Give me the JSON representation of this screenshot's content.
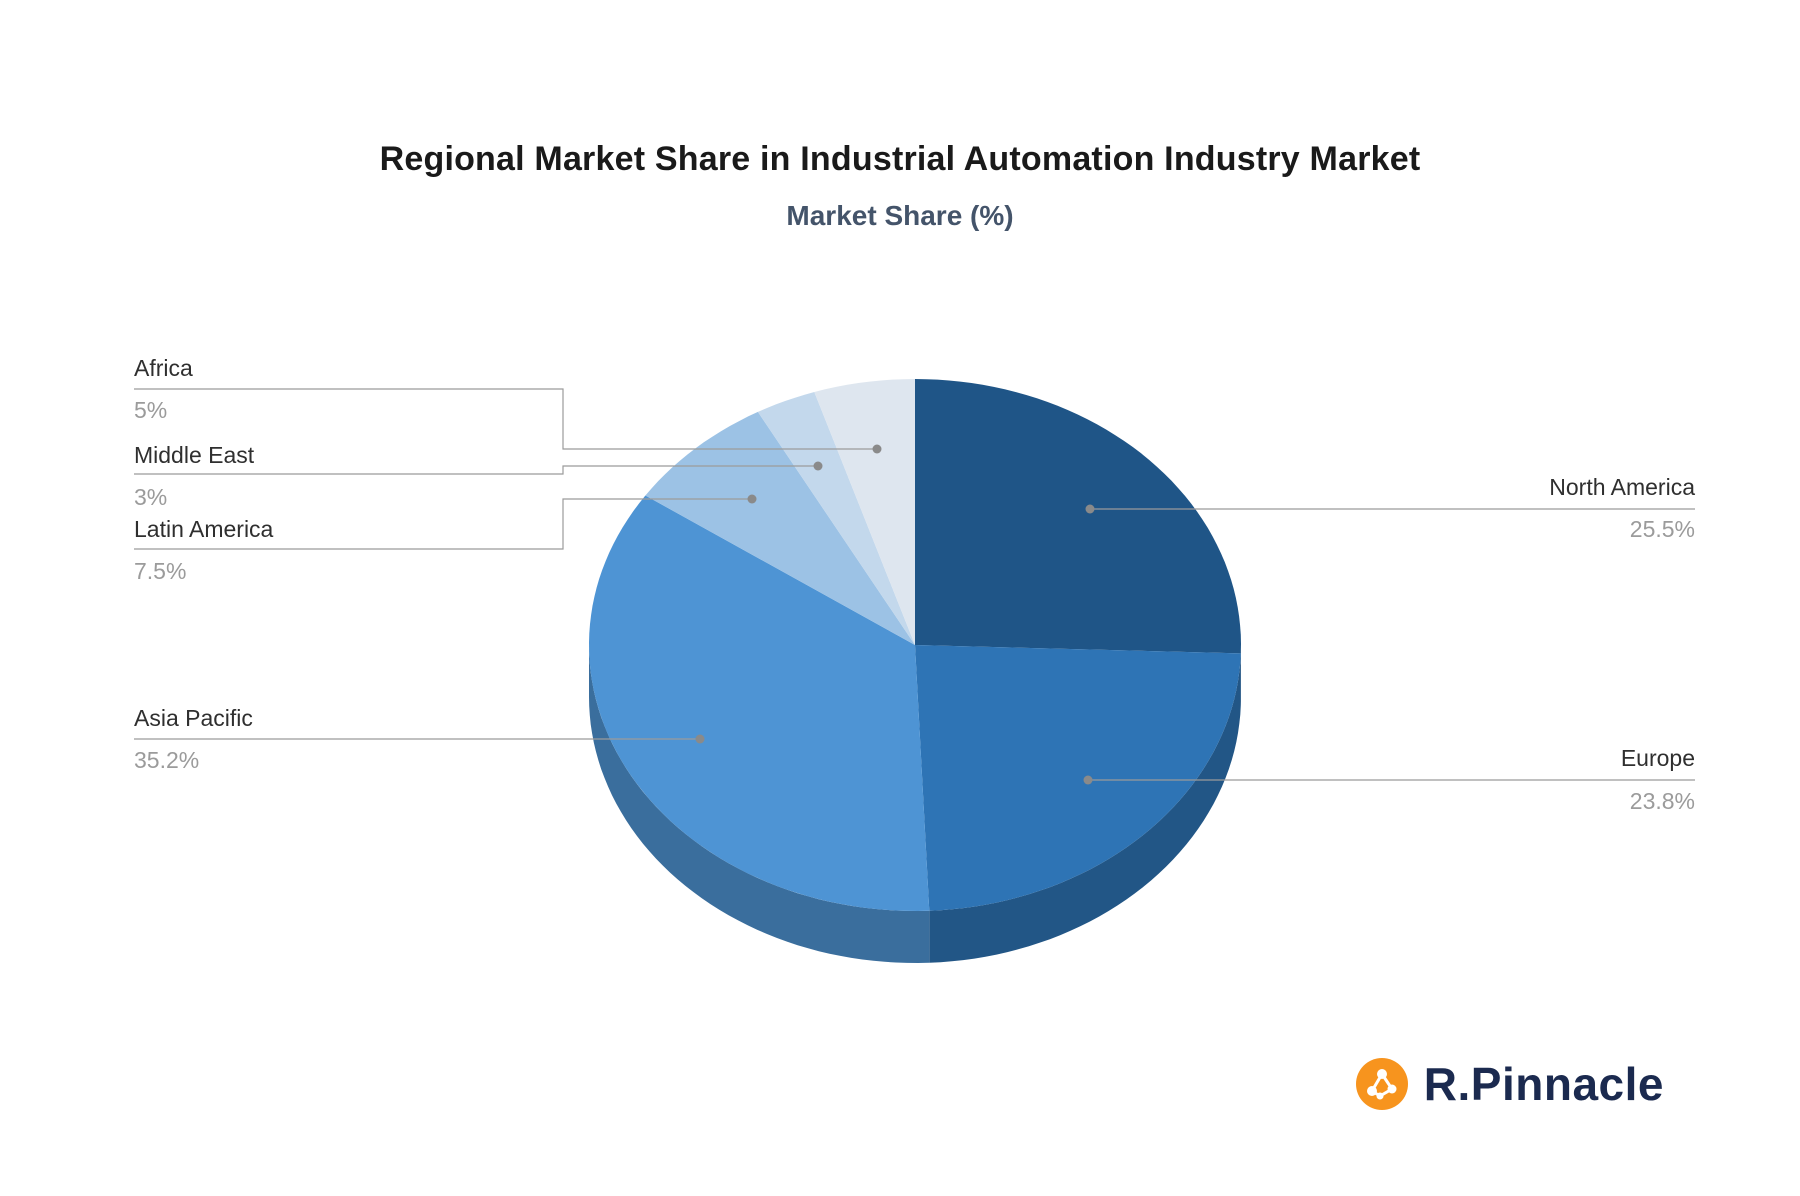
{
  "chart_data": {
    "type": "pie",
    "title": "Regional Market Share in Industrial Automation Industry Market",
    "subtitle": "Market Share (%)",
    "direction": "clockwise",
    "start_angle": "top",
    "legend_position": "outside-callouts",
    "slices": [
      {
        "label": "North America",
        "value": 25.5,
        "display": "25.5%",
        "color": "#1F5587",
        "side": "right"
      },
      {
        "label": "Europe",
        "value": 23.8,
        "display": "23.8%",
        "color": "#2E74B5",
        "side": "right"
      },
      {
        "label": "Asia Pacific",
        "value": 35.2,
        "display": "35.2%",
        "color": "#4E94D4",
        "side": "left"
      },
      {
        "label": "Latin America",
        "value": 7.5,
        "display": "7.5%",
        "color": "#9CC2E5",
        "side": "left"
      },
      {
        "label": "Middle East",
        "value": 3,
        "display": "3%",
        "color": "#C3D8EC",
        "side": "left"
      },
      {
        "label": "Africa",
        "value": 5,
        "display": "5%",
        "color": "#DEE6EF",
        "side": "left"
      }
    ],
    "callout_line_color": "#9b9b9b",
    "callout_dot_color": "#8a8a8a"
  },
  "brand": {
    "name": "R.Pinnacle",
    "accent_color": "#F7941E",
    "text_color": "#1B2A4F",
    "icon": "network-nodes-icon"
  }
}
